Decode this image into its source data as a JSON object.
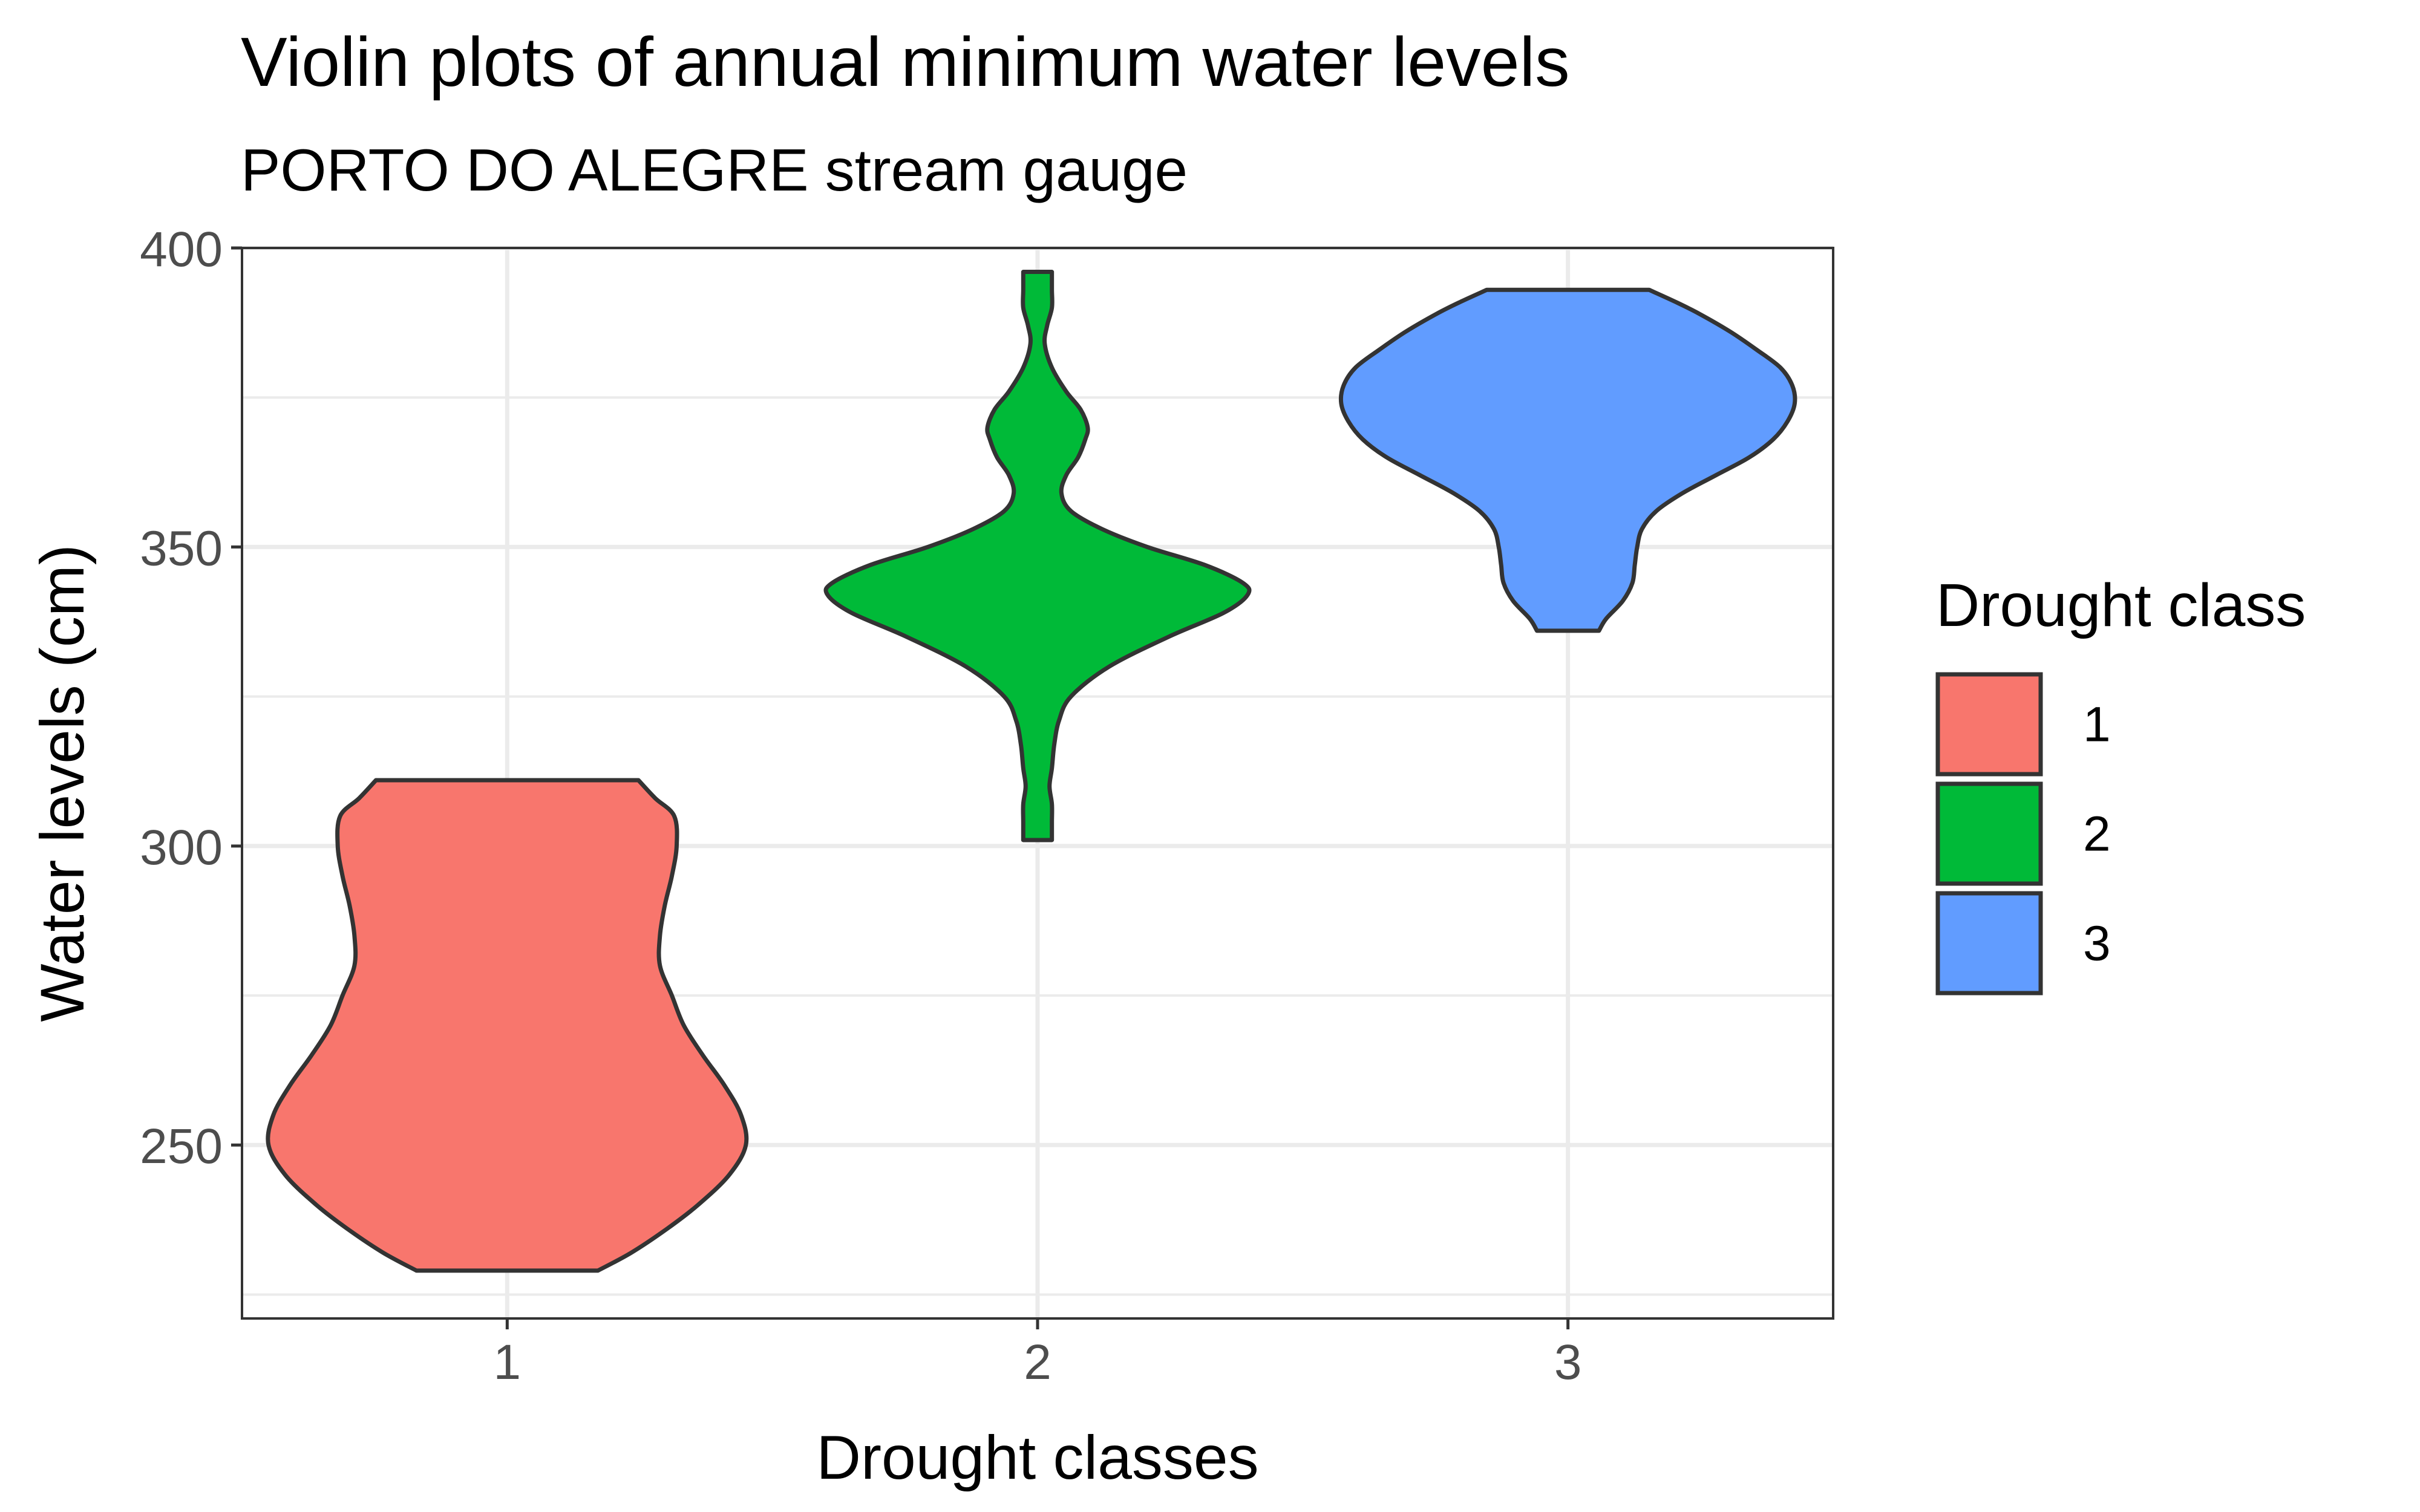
{
  "chart_data": {
    "type": "violin",
    "title": "Violin plots of annual minimum water levels",
    "subtitle": "PORTO DO ALEGRE stream gauge",
    "xlabel": "Drought classes",
    "ylabel": "Water levels (cm)",
    "categories": [
      "1",
      "2",
      "3"
    ],
    "ylim": [
      221,
      400
    ],
    "y_ticks": [
      250,
      300,
      350,
      400
    ],
    "grid": true,
    "legend": {
      "title": "Drought class",
      "position": "right",
      "entries": [
        "1",
        "2",
        "3"
      ]
    },
    "series": [
      {
        "category": "1",
        "color": "#F8766D",
        "min": 229,
        "max": 311,
        "density_profile": [
          [
            229,
            0.38
          ],
          [
            232,
            0.52
          ],
          [
            236,
            0.67
          ],
          [
            240,
            0.8
          ],
          [
            245,
            0.93
          ],
          [
            250,
            1.0
          ],
          [
            255,
            0.98
          ],
          [
            260,
            0.91
          ],
          [
            265,
            0.82
          ],
          [
            270,
            0.74
          ],
          [
            275,
            0.69
          ],
          [
            280,
            0.64
          ],
          [
            285,
            0.64
          ],
          [
            290,
            0.66
          ],
          [
            295,
            0.69
          ],
          [
            300,
            0.71
          ],
          [
            305,
            0.7
          ],
          [
            308,
            0.62
          ],
          [
            311,
            0.55
          ]
        ]
      },
      {
        "category": "2",
        "color": "#00BA38",
        "min": 301,
        "max": 396,
        "density_profile": [
          [
            301,
            0.06
          ],
          [
            304,
            0.06
          ],
          [
            307,
            0.06
          ],
          [
            310,
            0.05
          ],
          [
            313,
            0.06
          ],
          [
            317,
            0.07
          ],
          [
            321,
            0.09
          ],
          [
            325,
            0.14
          ],
          [
            330,
            0.3
          ],
          [
            335,
            0.55
          ],
          [
            339,
            0.78
          ],
          [
            342,
            0.88
          ],
          [
            344,
            0.86
          ],
          [
            347,
            0.7
          ],
          [
            350,
            0.46
          ],
          [
            353,
            0.27
          ],
          [
            356,
            0.14
          ],
          [
            359,
            0.1
          ],
          [
            362,
            0.12
          ],
          [
            365,
            0.17
          ],
          [
            368,
            0.2
          ],
          [
            370,
            0.21
          ],
          [
            373,
            0.18
          ],
          [
            376,
            0.12
          ],
          [
            380,
            0.06
          ],
          [
            384,
            0.03
          ],
          [
            387,
            0.04
          ],
          [
            390,
            0.06
          ],
          [
            393,
            0.06
          ],
          [
            396,
            0.06
          ]
        ]
      },
      {
        "category": "3",
        "color": "#619CFF",
        "min": 336,
        "max": 393,
        "density_profile": [
          [
            336,
            0.13
          ],
          [
            338,
            0.16
          ],
          [
            341,
            0.23
          ],
          [
            344,
            0.27
          ],
          [
            347,
            0.28
          ],
          [
            350,
            0.29
          ],
          [
            353,
            0.31
          ],
          [
            356,
            0.37
          ],
          [
            359,
            0.48
          ],
          [
            362,
            0.62
          ],
          [
            365,
            0.76
          ],
          [
            368,
            0.86
          ],
          [
            371,
            0.92
          ],
          [
            374,
            0.95
          ],
          [
            377,
            0.94
          ],
          [
            380,
            0.89
          ],
          [
            383,
            0.79
          ],
          [
            386,
            0.68
          ],
          [
            389,
            0.55
          ],
          [
            391,
            0.45
          ],
          [
            393,
            0.34
          ]
        ]
      }
    ]
  }
}
